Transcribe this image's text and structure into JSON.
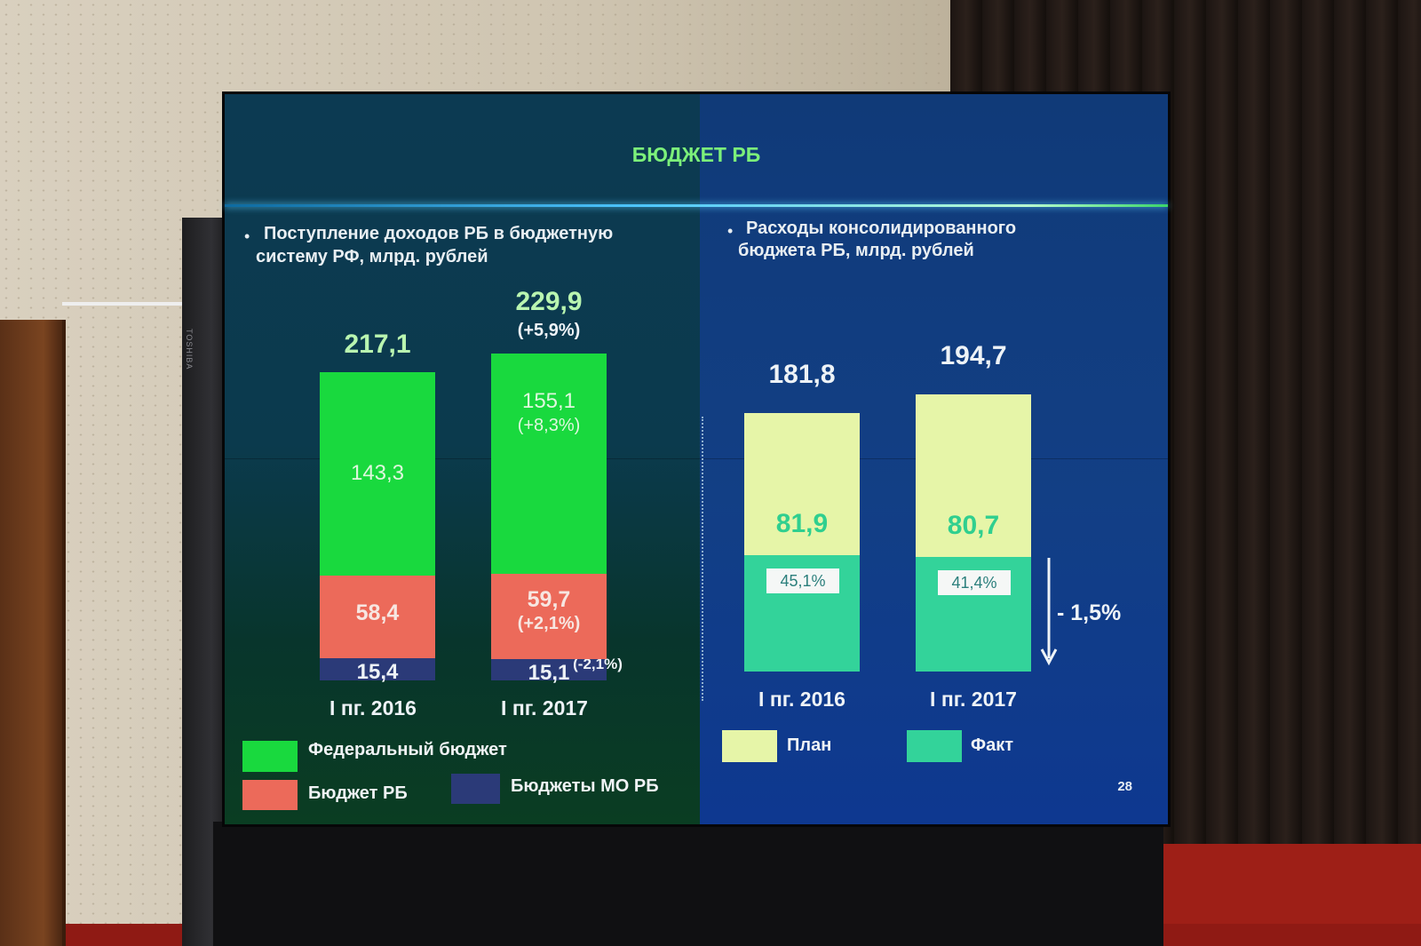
{
  "slide": {
    "title": "БЮДЖЕТ РБ",
    "page_number": "28"
  },
  "chart_data": [
    {
      "type": "bar",
      "stacked": true,
      "title": "Поступление доходов РБ в бюджетную систему РФ, млрд. рублей",
      "title_lines": [
        "Поступление доходов РБ в бюджетную",
        "систему РФ, млрд. рублей"
      ],
      "categories": [
        "I пг. 2016",
        "I пг. 2017"
      ],
      "totals": [
        217.1,
        229.9
      ],
      "total_labels": [
        "217,1",
        "229,9"
      ],
      "total_changes": [
        "",
        "(+5,9%)"
      ],
      "series": [
        {
          "name": "Бюджеты МО РБ",
          "values": [
            15.4,
            15.1
          ],
          "labels": [
            "15,4",
            "15,1"
          ],
          "changes": [
            "",
            "(-2,1%)"
          ],
          "color": "#2b3a78"
        },
        {
          "name": "Бюджет РБ",
          "values": [
            58.4,
            59.7
          ],
          "labels": [
            "58,4",
            "59,7"
          ],
          "changes": [
            "",
            "(+2,1%)"
          ],
          "color": "#ec6a5a"
        },
        {
          "name": "Федеральный бюджет",
          "values": [
            143.3,
            155.1
          ],
          "labels": [
            "143,3",
            "155,1"
          ],
          "changes": [
            "",
            "(+8,3%)"
          ],
          "color": "#19d93e"
        }
      ],
      "legend": [
        "Федеральный бюджет",
        "Бюджет РБ",
        "Бюджеты МО РБ"
      ]
    },
    {
      "type": "bar",
      "title": "Расходы консолидированного бюджета РБ, млрд. рублей",
      "title_lines": [
        "Расходы консолидированного",
        "бюджета РБ, млрд. рублей"
      ],
      "categories": [
        "I пг. 2016",
        "I пг. 2017"
      ],
      "series": [
        {
          "name": "План",
          "values": [
            181.8,
            194.7
          ],
          "labels": [
            "181,8",
            "194,7"
          ],
          "color": "#e6f5a8"
        },
        {
          "name": "Факт",
          "values": [
            81.9,
            80.7
          ],
          "labels": [
            "81,9",
            "80,7"
          ],
          "color": "#33d39a"
        }
      ],
      "fact_share_labels": [
        "45,1%",
        "41,4%"
      ],
      "change_annotation": "- 1,5%",
      "legend": [
        "План",
        "Факт"
      ]
    }
  ],
  "colors": {
    "title_green": "#7cf07a",
    "federal": "#19d93e",
    "rb": "#ec6a5a",
    "mo": "#2b3a78",
    "plan": "#e6f5a8",
    "fact": "#33d39a"
  }
}
